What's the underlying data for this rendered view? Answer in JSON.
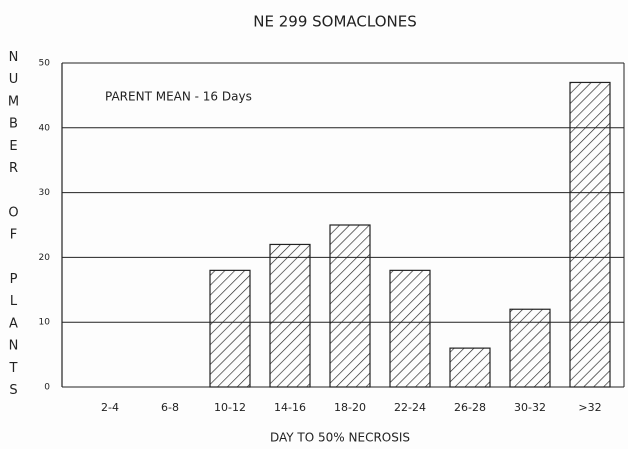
{
  "chart_data": {
    "type": "bar",
    "title": "NE 299 SOMACLONES",
    "x_label": "DAY TO 50% NECROSIS",
    "y_label": "NUMBER OF PLANTS",
    "annotation": "PARENT MEAN - 16 Days",
    "categories": [
      "2-4",
      "6-8",
      "10-12",
      "14-16",
      "18-20",
      "22-24",
      "26-28",
      "30-32",
      ">32"
    ],
    "values": [
      0,
      0,
      18,
      22,
      25,
      18,
      6,
      12,
      47
    ],
    "color": "#222222",
    "ylim": [
      0,
      50
    ],
    "yticks": [
      0,
      10,
      20,
      30,
      40,
      50
    ],
    "grid": true
  }
}
